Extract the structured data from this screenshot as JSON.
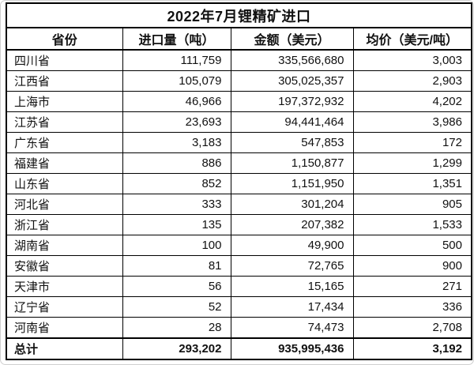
{
  "colors": {
    "background": "#ffffff",
    "table_border": "#000000",
    "text": "#111111",
    "outer_frame": "#cfcfcf"
  },
  "chart_data": {
    "type": "table",
    "title": "2022年7月锂精矿进口",
    "columns": [
      "省份",
      "进口量（吨）",
      "金额（美元）",
      "均价（美元/吨）"
    ],
    "rows": [
      [
        "四川省",
        "111,759",
        "335,566,680",
        "3,003"
      ],
      [
        "江西省",
        "105,079",
        "305,025,357",
        "2,903"
      ],
      [
        "上海市",
        "46,966",
        "197,372,932",
        "4,202"
      ],
      [
        "江苏省",
        "23,693",
        "94,441,464",
        "3,986"
      ],
      [
        "广东省",
        "3,183",
        "547,853",
        "172"
      ],
      [
        "福建省",
        "886",
        "1,150,877",
        "1,299"
      ],
      [
        "山东省",
        "852",
        "1,151,950",
        "1,351"
      ],
      [
        "河北省",
        "333",
        "301,204",
        "905"
      ],
      [
        "浙江省",
        "135",
        "207,382",
        "1,533"
      ],
      [
        "湖南省",
        "100",
        "49,900",
        "500"
      ],
      [
        "安徽省",
        "81",
        "72,765",
        "900"
      ],
      [
        "天津市",
        "56",
        "15,165",
        "271"
      ],
      [
        "辽宁省",
        "52",
        "17,434",
        "336"
      ],
      [
        "河南省",
        "28",
        "74,473",
        "2,708"
      ]
    ],
    "total_row": [
      "总计",
      "293,202",
      "935,995,436",
      "3,192"
    ],
    "numeric": {
      "provinces": [
        "四川省",
        "江西省",
        "上海市",
        "江苏省",
        "广东省",
        "福建省",
        "山东省",
        "河北省",
        "浙江省",
        "湖南省",
        "安徽省",
        "天津市",
        "辽宁省",
        "河南省"
      ],
      "import_volume_tons": [
        111759,
        105079,
        46966,
        23693,
        3183,
        886,
        852,
        333,
        135,
        100,
        81,
        56,
        52,
        28
      ],
      "value_usd": [
        335566680,
        305025357,
        197372932,
        94441464,
        547853,
        1150877,
        1151950,
        301204,
        207382,
        49900,
        72765,
        15165,
        17434,
        74473
      ],
      "avg_price_usd_per_ton": [
        3003,
        2903,
        4202,
        3986,
        172,
        1299,
        1351,
        905,
        1533,
        500,
        900,
        271,
        336,
        2708
      ],
      "total_import_volume_tons": 293202,
      "total_value_usd": 935995436,
      "total_avg_price_usd_per_ton": 3192
    }
  }
}
